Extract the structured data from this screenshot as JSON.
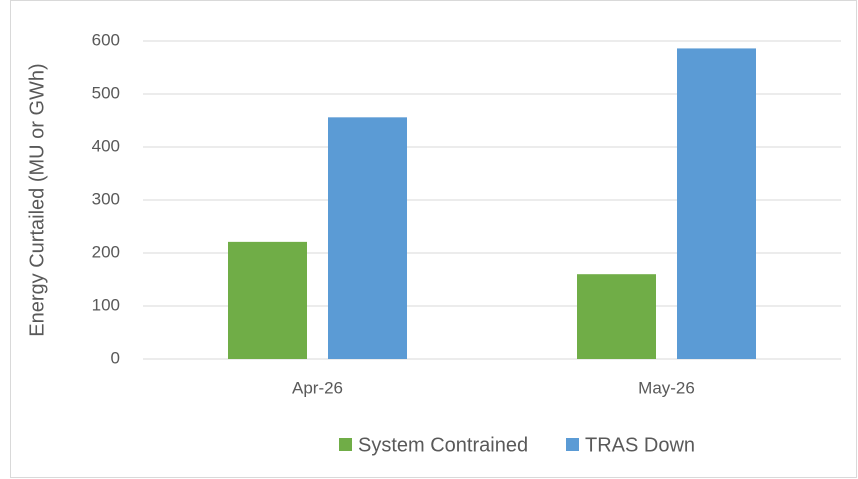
{
  "chart_data": {
    "type": "bar",
    "y_label": "Energy Curtailed (MU or GWh)",
    "categories": [
      "Apr-26",
      "May-26"
    ],
    "series": [
      {
        "name": "System Contrained",
        "color": "#70ad47",
        "values": [
          221,
          160
        ]
      },
      {
        "name": "TRAS Down",
        "color": "#5b9bd5",
        "values": [
          456,
          586
        ]
      }
    ],
    "ylim": [
      0,
      600
    ],
    "yticks": [
      0,
      100,
      200,
      300,
      400,
      500,
      600
    ],
    "grid": true,
    "legend": "bottom"
  }
}
